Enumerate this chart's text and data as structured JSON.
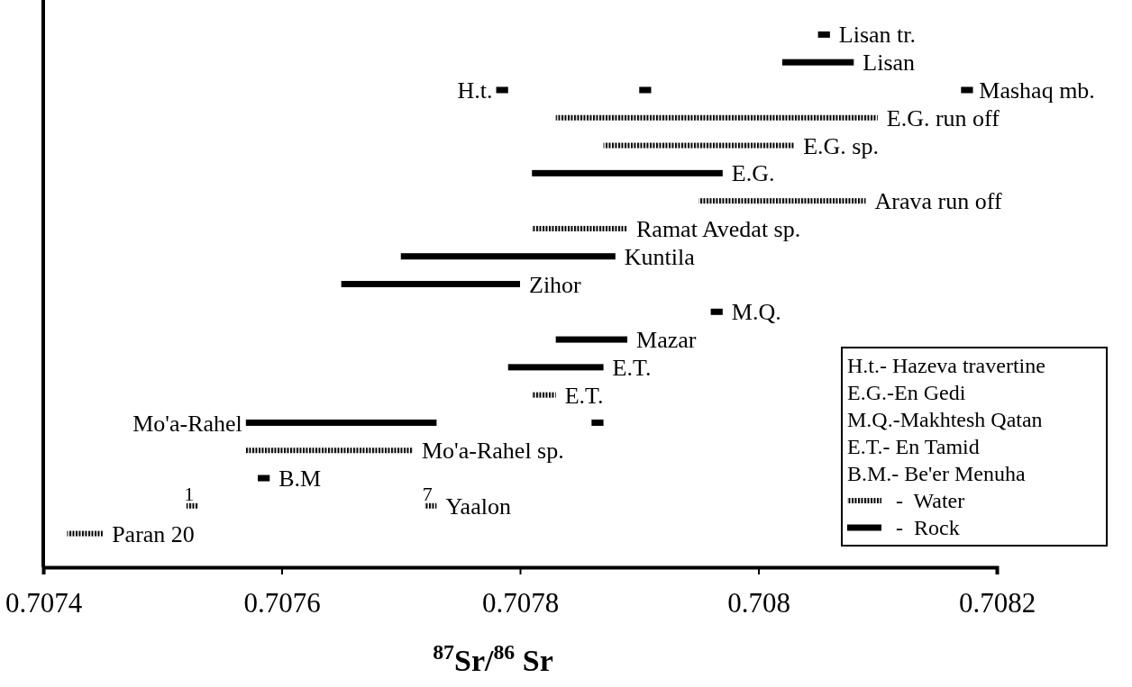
{
  "chart_data": {
    "type": "bar",
    "orientation": "horizontal",
    "categories": [
      "Lisan tr.",
      "Lisan",
      "H.t.",
      "E.G. run off",
      "E.G. sp.",
      "E.G.",
      "Arava run off",
      "Ramat Avedat sp.",
      "Kuntila",
      "Zihor",
      "M.Q.",
      "Mazar",
      "E.T.",
      "E.T.",
      "Mo'a-Rahel",
      "Mo'a-Rahel sp.",
      "B.M",
      "Yaalon",
      "Paran 20"
    ],
    "series": [
      {
        "name": "-  Water",
        "color": "#000000",
        "line_style": "dotted",
        "base": [
          null,
          null,
          null,
          0.70783,
          0.70787,
          null,
          0.70795,
          0.70781,
          null,
          null,
          null,
          null,
          null,
          0.70781,
          null,
          0.70757,
          null,
          0.70752,
          0.70742
        ],
        "values": [
          null,
          null,
          null,
          0.00027,
          0.00016,
          null,
          0.00014,
          8e-05,
          null,
          null,
          null,
          null,
          null,
          2e-05,
          null,
          0.00014,
          null,
          1e-05,
          3e-05
        ]
      },
      {
        "color": "#000000",
        "line_style": "dotted",
        "base": [
          null,
          null,
          null,
          null,
          null,
          null,
          null,
          null,
          null,
          null,
          null,
          null,
          null,
          null,
          null,
          null,
          null,
          0.70772,
          null
        ],
        "values": [
          null,
          null,
          null,
          null,
          null,
          null,
          null,
          null,
          null,
          null,
          null,
          null,
          null,
          null,
          null,
          null,
          null,
          1e-05,
          null
        ]
      },
      {
        "name": "-  Rock",
        "color": "#000000",
        "line_style": "solid",
        "base": [
          0.70805,
          0.70802,
          0.70778,
          null,
          null,
          0.70781,
          null,
          null,
          0.7077,
          0.70765,
          0.70796,
          0.70783,
          0.70779,
          null,
          0.70757,
          null,
          0.70758,
          null,
          null
        ],
        "values": [
          1e-05,
          6e-05,
          1e-05,
          null,
          null,
          0.00016,
          null,
          null,
          0.00018,
          0.00015,
          1e-05,
          6e-05,
          8e-05,
          null,
          0.00016,
          null,
          1e-05,
          null,
          null
        ]
      },
      {
        "color": "#000000",
        "line_style": "solid",
        "base": [
          null,
          null,
          0.7079,
          null,
          null,
          null,
          null,
          null,
          null,
          null,
          null,
          null,
          null,
          null,
          0.70786,
          null,
          null,
          null,
          null
        ],
        "values": [
          null,
          null,
          1e-05,
          null,
          null,
          null,
          null,
          null,
          null,
          null,
          null,
          null,
          null,
          null,
          1e-05,
          null,
          null,
          null,
          null
        ]
      },
      {
        "color": "#000000",
        "line_style": "solid",
        "base": [
          null,
          null,
          0.70817,
          null,
          null,
          null,
          null,
          null,
          null,
          null,
          null,
          null,
          null,
          null,
          null,
          null,
          null,
          null,
          null
        ],
        "values": [
          null,
          null,
          1e-05,
          null,
          null,
          null,
          null,
          null,
          null,
          null,
          null,
          null,
          null,
          null,
          null,
          null,
          null,
          null,
          null
        ]
      }
    ],
    "xlim": [
      0.7074,
      0.7082
    ],
    "xticks": [
      0.7074,
      0.7076,
      0.7078,
      0.708,
      0.7082
    ],
    "xlabel": "$^{87}$Sr/$^{86}$ Sr",
    "annotations": [
      "H.t.- Hazeva travertine",
      "E.G.-En Gedi",
      "M.Q.-Makhtesh Qatan",
      "E.T.- En Tamid",
      "B.M.- Be'er Menuha",
      {
        "text": "Mashaq mb.",
        "x": 0.70817,
        "y": "H.t."
      },
      {
        "text": "1",
        "x": 0.70752,
        "y": "Yaalon"
      },
      {
        "text": "7",
        "x": 0.70772,
        "y": "Yaalon"
      }
    ],
    "legend": "bottom right"
  }
}
